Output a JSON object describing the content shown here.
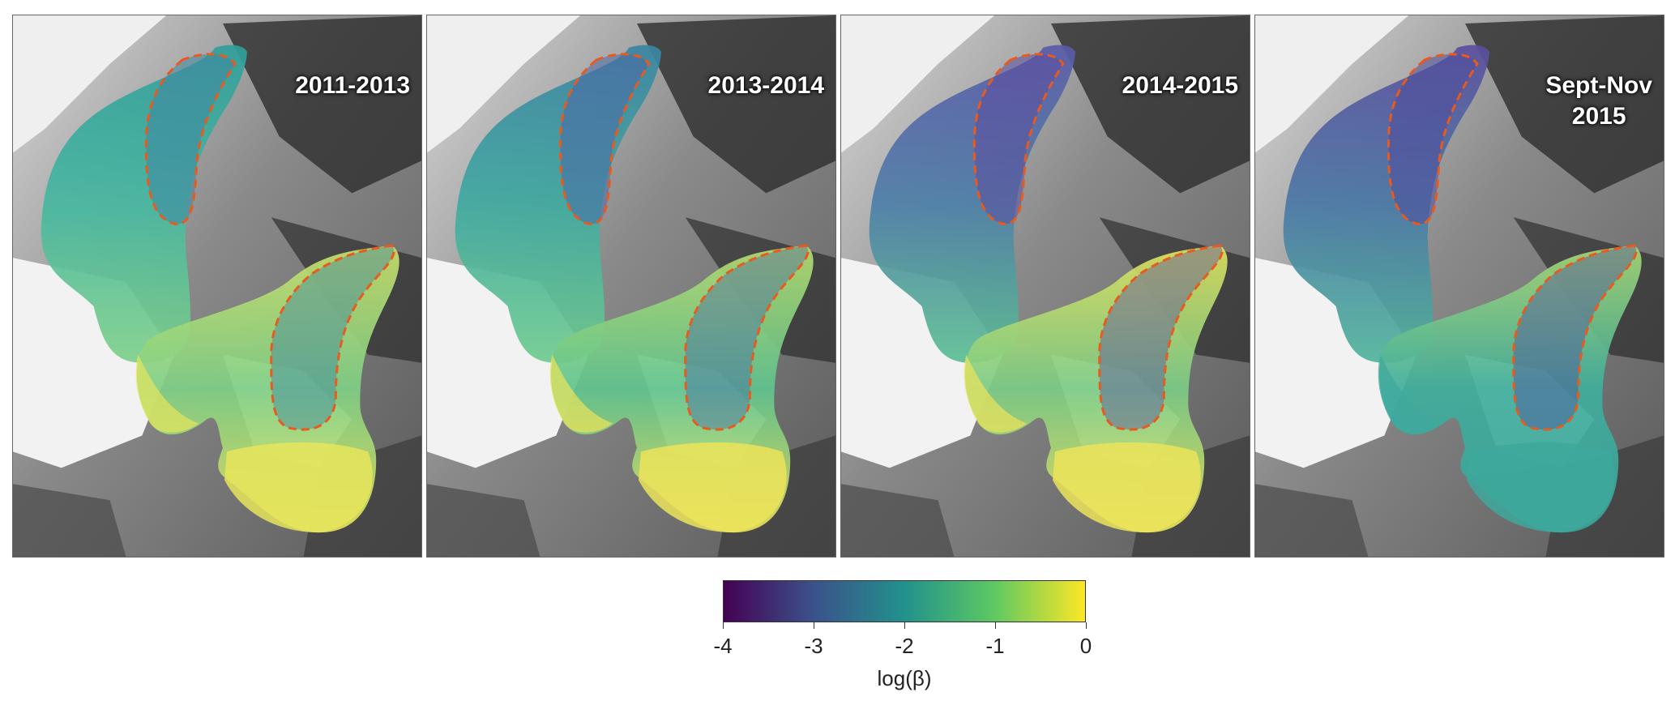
{
  "panels": [
    {
      "label": "2011-2013",
      "scheme": "p1"
    },
    {
      "label": "2013-2014",
      "scheme": "p2"
    },
    {
      "label": "2014-2015",
      "scheme": "p3"
    },
    {
      "label": "Sept-Nov\n2015",
      "scheme": "p4"
    }
  ],
  "colorbar": {
    "ticks": [
      "-4",
      "-3",
      "-2",
      "-1",
      "0"
    ],
    "range": [
      -4,
      0
    ],
    "label": "log(β)",
    "colormap": "viridis",
    "colors": [
      "#440154",
      "#3b528b",
      "#21918c",
      "#5ec962",
      "#fde725"
    ]
  },
  "outline_color": "#e85a1e"
}
